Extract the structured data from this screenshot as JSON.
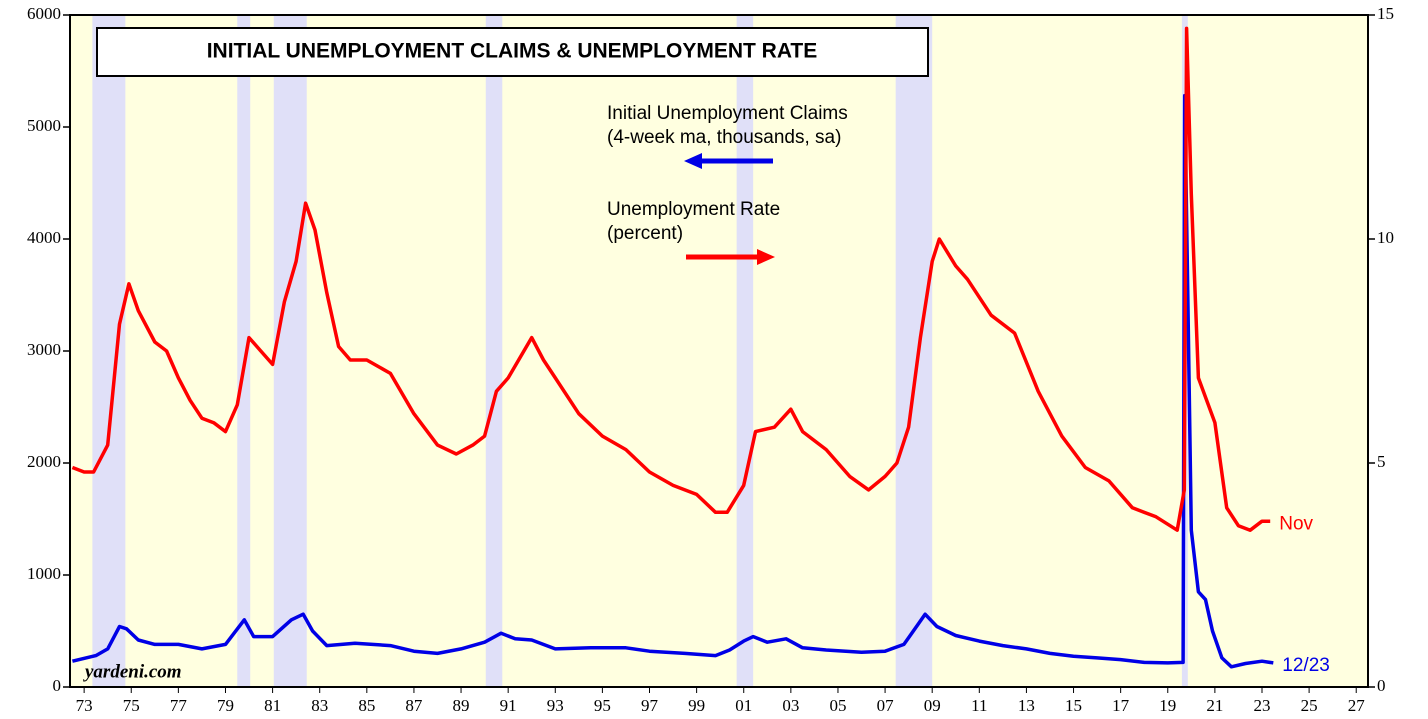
{
  "chart_data": {
    "type": "line",
    "title": "INITIAL UNEMPLOYMENT CLAIMS & UNEMPLOYMENT RATE",
    "source": "yardeni.com",
    "xlim": [
      1972.9,
      2028
    ],
    "ylim": [
      0,
      6000
    ],
    "yticks": [
      0,
      1000,
      2000,
      3000,
      4000,
      5000,
      6000
    ],
    "y2lim": [
      0,
      15
    ],
    "y2ticks": [
      0,
      5,
      10,
      15
    ],
    "xticks": [
      {
        "value": 1973.5,
        "label": "73"
      },
      {
        "value": 1975.5,
        "label": "75"
      },
      {
        "value": 1977.5,
        "label": "77"
      },
      {
        "value": 1979.5,
        "label": "79"
      },
      {
        "value": 1981.5,
        "label": "81"
      },
      {
        "value": 1983.5,
        "label": "83"
      },
      {
        "value": 1985.5,
        "label": "85"
      },
      {
        "value": 1987.5,
        "label": "87"
      },
      {
        "value": 1989.5,
        "label": "89"
      },
      {
        "value": 1991.5,
        "label": "91"
      },
      {
        "value": 1993.5,
        "label": "93"
      },
      {
        "value": 1995.5,
        "label": "95"
      },
      {
        "value": 1997.5,
        "label": "97"
      },
      {
        "value": 1999.5,
        "label": "99"
      },
      {
        "value": 2001.5,
        "label": "01"
      },
      {
        "value": 2003.5,
        "label": "03"
      },
      {
        "value": 2005.5,
        "label": "05"
      },
      {
        "value": 2007.5,
        "label": "07"
      },
      {
        "value": 2009.5,
        "label": "09"
      },
      {
        "value": 2011.5,
        "label": "11"
      },
      {
        "value": 2013.5,
        "label": "13"
      },
      {
        "value": 2015.5,
        "label": "15"
      },
      {
        "value": 2017.5,
        "label": "17"
      },
      {
        "value": 2019.5,
        "label": "19"
      },
      {
        "value": 2021.5,
        "label": "21"
      },
      {
        "value": 2023.5,
        "label": "23"
      },
      {
        "value": 2025.5,
        "label": "25"
      },
      {
        "value": 2027.5,
        "label": "27"
      }
    ],
    "background": "#ffffe0",
    "recession_color": "#e0e0f8",
    "recessions": [
      [
        1973.85,
        1975.25
      ],
      [
        1980.0,
        1980.55
      ],
      [
        1981.55,
        1982.95
      ],
      [
        1990.55,
        1991.25
      ],
      [
        2001.2,
        2001.9
      ],
      [
        2007.95,
        2009.5
      ],
      [
        2020.1,
        2020.35
      ]
    ],
    "series": [
      {
        "name": "Initial Unemployment Claims",
        "note": "(4-week ma, thousands, sa)",
        "end_label": "12/23",
        "color": "#0000e6",
        "x": [
          1973.0,
          1974.0,
          1974.5,
          1975.0,
          1975.3,
          1975.8,
          1976.5,
          1977.5,
          1978.5,
          1979.5,
          1980.3,
          1980.7,
          1981.5,
          1982.3,
          1982.8,
          1983.2,
          1983.8,
          1985.0,
          1986.5,
          1987.5,
          1988.5,
          1989.5,
          1990.5,
          1991.2,
          1991.8,
          1992.5,
          1993.5,
          1995.0,
          1996.5,
          1997.5,
          1999.0,
          2000.3,
          2000.9,
          2001.5,
          2001.9,
          2002.5,
          2003.3,
          2004.0,
          2005.0,
          2006.5,
          2007.5,
          2008.3,
          2008.9,
          2009.2,
          2009.7,
          2010.5,
          2011.5,
          2012.5,
          2013.5,
          2014.5,
          2015.5,
          2016.5,
          2017.5,
          2018.5,
          2019.5,
          2020.15,
          2020.22,
          2020.35,
          2020.5,
          2020.8,
          2021.1,
          2021.4,
          2021.8,
          2022.2,
          2022.8,
          2023.5,
          2023.98
        ],
        "values": [
          230,
          280,
          340,
          540,
          520,
          420,
          380,
          380,
          340,
          380,
          600,
          450,
          450,
          600,
          650,
          500,
          370,
          390,
          370,
          320,
          300,
          340,
          400,
          480,
          430,
          420,
          340,
          350,
          350,
          320,
          300,
          280,
          330,
          410,
          450,
          400,
          430,
          350,
          330,
          310,
          320,
          380,
          560,
          650,
          540,
          460,
          410,
          370,
          340,
          300,
          275,
          260,
          245,
          220,
          215,
          220,
          5280,
          3500,
          1400,
          850,
          780,
          500,
          260,
          180,
          210,
          230,
          215
        ]
      },
      {
        "name": "Unemployment Rate",
        "note": "(percent)",
        "end_label": "Nov",
        "color": "#ff0000",
        "axis": "y2",
        "x": [
          1973.0,
          1973.5,
          1973.9,
          1974.5,
          1975.0,
          1975.4,
          1975.8,
          1976.5,
          1977.0,
          1977.5,
          1978.0,
          1978.5,
          1979.0,
          1979.5,
          1980.0,
          1980.5,
          1981.0,
          1981.5,
          1982.0,
          1982.5,
          1982.9,
          1983.3,
          1983.8,
          1984.3,
          1984.8,
          1985.5,
          1986.5,
          1987.5,
          1988.5,
          1989.3,
          1990.0,
          1990.5,
          1991.0,
          1991.5,
          1992.5,
          1993.0,
          1993.5,
          1994.5,
          1995.5,
          1996.5,
          1997.5,
          1998.5,
          1999.5,
          2000.3,
          2000.8,
          2001.5,
          2002.0,
          2002.8,
          2003.5,
          2004.0,
          2005.0,
          2006.0,
          2006.8,
          2007.5,
          2008.0,
          2008.5,
          2009.0,
          2009.5,
          2009.8,
          2010.5,
          2011.0,
          2012.0,
          2013.0,
          2014.0,
          2015.0,
          2016.0,
          2017.0,
          2018.0,
          2019.0,
          2019.9,
          2020.2,
          2020.3,
          2020.5,
          2020.8,
          2021.5,
          2022.0,
          2022.5,
          2023.0,
          2023.5,
          2023.85
        ],
        "values": [
          4.9,
          4.8,
          4.8,
          5.4,
          8.1,
          9.0,
          8.4,
          7.7,
          7.5,
          6.9,
          6.4,
          6.0,
          5.9,
          5.7,
          6.3,
          7.8,
          7.5,
          7.2,
          8.6,
          9.5,
          10.8,
          10.2,
          8.8,
          7.6,
          7.3,
          7.3,
          7.0,
          6.1,
          5.4,
          5.2,
          5.4,
          5.6,
          6.6,
          6.9,
          7.8,
          7.3,
          6.9,
          6.1,
          5.6,
          5.3,
          4.8,
          4.5,
          4.3,
          3.9,
          3.9,
          4.5,
          5.7,
          5.8,
          6.2,
          5.7,
          5.3,
          4.7,
          4.4,
          4.7,
          5.0,
          5.8,
          7.8,
          9.5,
          10.0,
          9.4,
          9.1,
          8.3,
          7.9,
          6.6,
          5.6,
          4.9,
          4.6,
          4.0,
          3.8,
          3.5,
          4.4,
          14.7,
          11.0,
          6.9,
          5.9,
          4.0,
          3.6,
          3.5,
          3.7,
          3.7
        ]
      }
    ]
  }
}
